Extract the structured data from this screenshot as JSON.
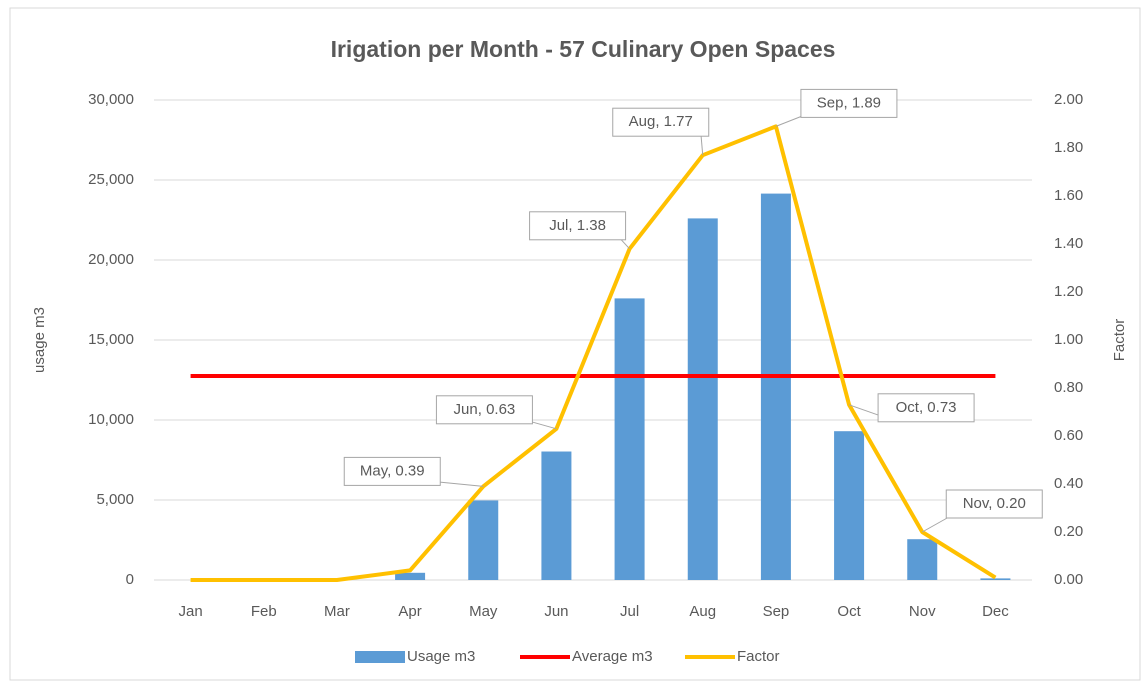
{
  "chart_data": {
    "type": "combo",
    "title": "Irigation per Month - 57 Culinary Open Spaces",
    "categories": [
      "Jan",
      "Feb",
      "Mar",
      "Apr",
      "May",
      "Jun",
      "Jul",
      "Aug",
      "Sep",
      "Oct",
      "Nov",
      "Dec"
    ],
    "series": [
      {
        "name": "Usage m3",
        "type": "bar",
        "color": "#5b9bd5",
        "axis": "y",
        "values": [
          0,
          0,
          0,
          450,
          4970,
          8030,
          17600,
          22600,
          24150,
          9300,
          2550,
          100
        ]
      },
      {
        "name": "Average m3",
        "type": "line",
        "color": "#ff0000",
        "axis": "y",
        "values": [
          12750,
          12750,
          12750,
          12750,
          12750,
          12750,
          12750,
          12750,
          12750,
          12750,
          12750,
          12750
        ]
      },
      {
        "name": "Factor",
        "type": "line",
        "color": "#ffc000",
        "axis": "y2",
        "values": [
          0,
          0,
          0,
          0.04,
          0.39,
          0.63,
          1.38,
          1.77,
          1.89,
          0.73,
          0.2,
          0.01
        ],
        "value_labels": [
          null,
          null,
          null,
          null,
          "May, 0.39",
          "Jun, 0.63",
          "Jul, 1.38",
          "Aug, 1.77",
          "Sep, 1.89",
          "Oct, 0.73",
          "Nov, 0.20",
          null
        ]
      }
    ],
    "ylabel": "usage m3",
    "y2label": "Factor",
    "ylim": [
      0,
      30000
    ],
    "yticks": [
      0,
      {
        "value": 5000,
        "label": "5,000"
      },
      {
        "value": 10000,
        "label": "10,000"
      },
      {
        "value": 15000,
        "label": "15,000"
      },
      {
        "value": 20000,
        "label": "20,000"
      },
      {
        "value": 25000,
        "label": "25,000"
      },
      {
        "value": 30000,
        "label": "30,000"
      }
    ],
    "y2lim": [
      0,
      2
    ],
    "y2ticks": [
      {
        "value": 0,
        "label": "0.00"
      },
      {
        "value": 0.2,
        "label": "0.20"
      },
      {
        "value": 0.4,
        "label": "0.40"
      },
      {
        "value": 0.6,
        "label": "0.60"
      },
      {
        "value": 0.8,
        "label": "0.80"
      },
      {
        "value": 1,
        "label": "1.00"
      },
      {
        "value": 1.2,
        "label": "1.20"
      },
      {
        "value": 1.4,
        "label": "1.40"
      },
      {
        "value": 1.6,
        "label": "1.60"
      },
      {
        "value": 1.8,
        "label": "1.80"
      },
      {
        "value": 2,
        "label": "2.00"
      }
    ],
    "grid": true,
    "legend": "bottom"
  }
}
